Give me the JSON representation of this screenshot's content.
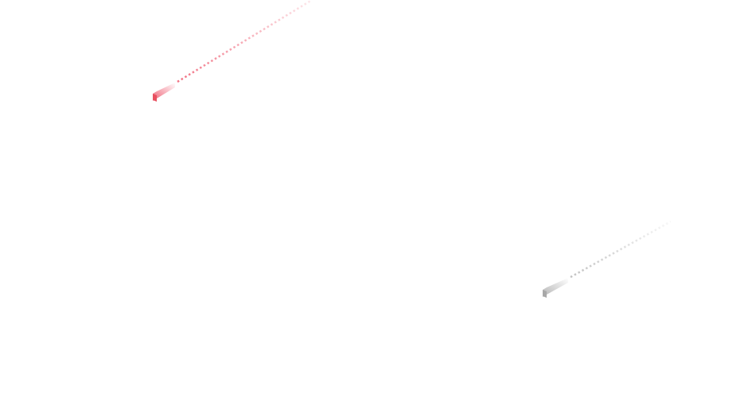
{
  "decorations": {
    "streaks": [
      {
        "name": "red-streak",
        "color": "#f06478"
      },
      {
        "name": "gray-streak",
        "color": "#b4b4b4"
      }
    ]
  }
}
